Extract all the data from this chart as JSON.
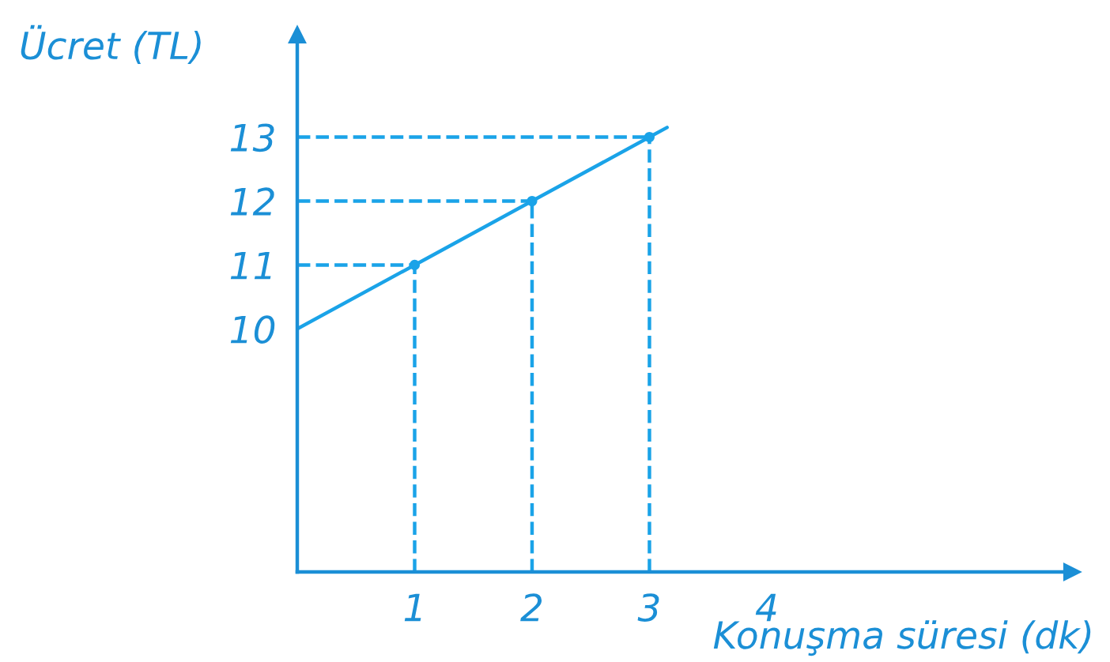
{
  "chart_data": {
    "type": "line",
    "xlabel": "Konuşma süresi (dk)",
    "ylabel": "Ücret (TL)",
    "series": [
      {
        "color": "#1aa3e8",
        "x": [
          0,
          1,
          2,
          3,
          3.15
        ],
        "values": [
          10,
          11,
          12,
          13,
          13.15
        ],
        "marker": "none",
        "line_style": "solid"
      },
      {
        "type": "scatter",
        "color": "#1aa3e8",
        "x": [
          1,
          2,
          3
        ],
        "values": [
          11,
          12,
          13
        ],
        "marker": "circle"
      },
      {
        "color": "#1aa3e8",
        "x": [
          0,
          1
        ],
        "values": [
          11,
          11
        ],
        "marker": "none",
        "line_style": "dashed"
      },
      {
        "color": "#1aa3e8",
        "x": [
          0,
          2
        ],
        "values": [
          12,
          12
        ],
        "marker": "none",
        "line_style": "dashed"
      },
      {
        "color": "#1aa3e8",
        "x": [
          0,
          3
        ],
        "values": [
          13,
          13
        ],
        "marker": "none",
        "line_style": "dashed"
      },
      {
        "color": "#1aa3e8",
        "x": [
          1,
          1
        ],
        "values": [
          6.2,
          11
        ],
        "marker": "none",
        "line_style": "dashed"
      },
      {
        "color": "#1aa3e8",
        "x": [
          2,
          2
        ],
        "values": [
          6.2,
          12
        ],
        "marker": "none",
        "line_style": "dashed"
      },
      {
        "color": "#1aa3e8",
        "x": [
          3,
          3
        ],
        "values": [
          6.2,
          13
        ],
        "marker": "none",
        "line_style": "dashed"
      }
    ],
    "xlim": [
      0,
      6.6
    ],
    "ylim": [
      6.2,
      14.6
    ],
    "xticks": [
      1,
      2,
      3,
      4
    ],
    "yticks": [
      10,
      11,
      12,
      13
    ],
    "grid": false,
    "legend": false
  }
}
